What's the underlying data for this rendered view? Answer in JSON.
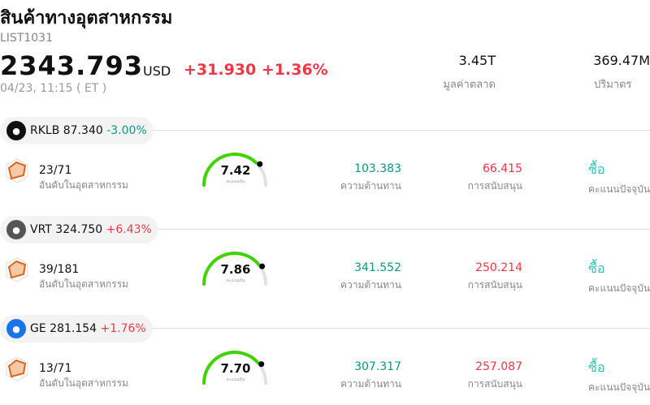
{
  "header": {
    "title": "สินค้าทางอุตสาหกรรม",
    "code": "LIST1031",
    "price": "2343.793",
    "currency": "USD",
    "change": "+31.930",
    "change_pct": "+1.36%",
    "time": "04/23, 11:15  ( ET )",
    "market_cap": "3.45T",
    "market_cap_label": "มูลค่าตลาด",
    "volume": "369.47M",
    "volume_label": "ปริมาตร"
  },
  "colors": {
    "up": "#f23645",
    "down": "#089981",
    "gauge": "#3fd400"
  },
  "stocks": [
    {
      "ticker": "RKLB",
      "price": "87.340",
      "change": "-3.00%",
      "direction": "down",
      "logo_color": "#111",
      "rank": "23/71",
      "rank_label": "อันดับในอุตสาหกรรม",
      "score": 7.42,
      "score_text": "7.42",
      "score_label": "คะแนนหุ้น",
      "resistance": "103.383",
      "resistance_label": "ความต้านทาน",
      "support": "66.415",
      "support_label": "การสนับสนุน",
      "rating": "ซื้อ",
      "rating_label": "คะแนนปัจจุบัน"
    },
    {
      "ticker": "VRT",
      "price": "324.750",
      "change": "+6.43%",
      "direction": "up",
      "logo_color": "#555",
      "rank": "39/181",
      "rank_label": "อันดับในอุตสาหกรรม",
      "score": 7.86,
      "score_text": "7.86",
      "score_label": "คะแนนหุ้น",
      "resistance": "341.552",
      "resistance_label": "ความต้านทาน",
      "support": "250.214",
      "support_label": "การสนับสนุน",
      "rating": "ซื้อ",
      "rating_label": "คะแนนปัจจุบัน"
    },
    {
      "ticker": "GE",
      "price": "281.154",
      "change": "+1.76%",
      "direction": "up",
      "logo_color": "#1a73e8",
      "rank": "13/71",
      "rank_label": "อันดับในอุตสาหกรรม",
      "score": 7.7,
      "score_text": "7.70",
      "score_label": "คะแนนหุ้น",
      "resistance": "307.317",
      "resistance_label": "ความต้านทาน",
      "support": "257.087",
      "support_label": "การสนับสนุน",
      "rating": "ซื้อ",
      "rating_label": "คะแนนปัจจุบัน"
    }
  ]
}
